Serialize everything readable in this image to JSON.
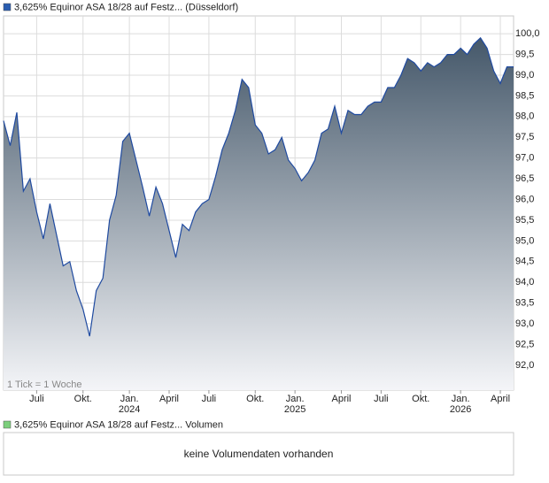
{
  "chart_data": {
    "type": "area",
    "title": "3,625% Equinor ASA 18/28 auf Festz... (Düsseldorf)",
    "annotation": "1 Tick = 1 Woche",
    "color": "#1f4aa0",
    "legend_color": "#2a5db0",
    "categories": [
      null,
      null,
      null,
      null,
      null,
      "Juli",
      null,
      null,
      null,
      null,
      null,
      null,
      "Okt.",
      null,
      null,
      null,
      null,
      null,
      null,
      "Jan. 2024",
      null,
      null,
      null,
      null,
      null,
      "April",
      null,
      null,
      null,
      null,
      null,
      "Juli",
      null,
      null,
      null,
      null,
      null,
      null,
      "Okt.",
      null,
      null,
      null,
      null,
      null,
      "Jan. 2025",
      null,
      null,
      null,
      null,
      null,
      null,
      "April",
      null,
      null,
      null,
      null,
      null,
      "Juli",
      null,
      null,
      null,
      null,
      null,
      "Okt.",
      null,
      null,
      null,
      null,
      null,
      "Jan. 2026",
      null,
      null,
      null,
      null,
      null,
      "April",
      null,
      null
    ],
    "values": [
      97.9,
      97.3,
      98.1,
      96.2,
      96.5,
      95.7,
      95.05,
      95.9,
      95.15,
      94.4,
      94.5,
      93.8,
      93.35,
      92.7,
      93.8,
      94.1,
      95.5,
      96.1,
      97.4,
      97.6,
      96.95,
      96.3,
      95.6,
      96.3,
      95.9,
      95.25,
      94.6,
      95.4,
      95.25,
      95.7,
      95.9,
      96.0,
      96.55,
      97.2,
      97.6,
      98.15,
      98.9,
      98.7,
      97.8,
      97.6,
      97.1,
      97.2,
      97.5,
      96.95,
      96.75,
      96.45,
      96.65,
      96.95,
      97.6,
      97.7,
      98.25,
      97.6,
      98.15,
      98.05,
      98.05,
      98.25,
      98.35,
      98.35,
      98.7,
      98.7,
      99.0,
      99.4,
      99.3,
      99.1,
      99.3,
      99.2,
      99.3,
      99.5,
      99.5,
      99.65,
      99.5,
      99.75,
      99.9,
      99.65,
      99.1,
      98.8,
      99.2,
      99.2
    ],
    "ylim": [
      91.4,
      100.43
    ],
    "yticks": [
      {
        "value": 92,
        "label": "92,0"
      },
      {
        "value": 92.5,
        "label": "92,5"
      },
      {
        "value": 93,
        "label": "93,0"
      },
      {
        "value": 93.5,
        "label": "93,5"
      },
      {
        "value": 94,
        "label": "94,0"
      },
      {
        "value": 94.5,
        "label": "94,5"
      },
      {
        "value": 95,
        "label": "95,0"
      },
      {
        "value": 95.5,
        "label": "95,5"
      },
      {
        "value": 96,
        "label": "96,0"
      },
      {
        "value": 96.5,
        "label": "96,5"
      },
      {
        "value": 97,
        "label": "97,0"
      },
      {
        "value": 97.5,
        "label": "97,5"
      },
      {
        "value": 98,
        "label": "98,0"
      },
      {
        "value": 98.5,
        "label": "98,5"
      },
      {
        "value": 99,
        "label": "99,0"
      },
      {
        "value": 99.5,
        "label": "99,5"
      },
      {
        "value": 100,
        "label": "100,0"
      }
    ],
    "grid": true
  },
  "volume_panel": {
    "legend": "3,625% Equinor ASA 18/28 auf Festz... Volumen",
    "legend_color": "#7ccf7c",
    "message": "keine Volumendaten vorhanden"
  }
}
